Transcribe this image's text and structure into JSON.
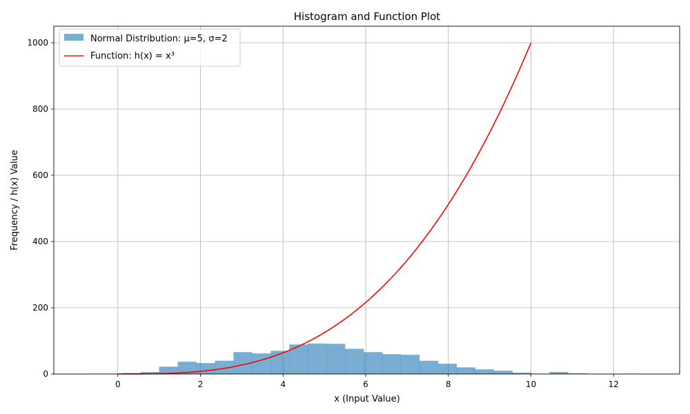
{
  "chart_data": {
    "type": "bar+line",
    "title": "Histogram and Function Plot",
    "xlabel": "x (Input Value)",
    "ylabel": "Frequency / h(x) Value",
    "xlim": [
      -1.55,
      13.6
    ],
    "ylim": [
      0,
      1050
    ],
    "x_ticks": [
      0,
      2,
      4,
      6,
      8,
      10,
      12
    ],
    "y_ticks": [
      0,
      200,
      400,
      600,
      800,
      1000
    ],
    "grid": true,
    "legend_position": "upper-left",
    "histogram": {
      "name": "Normal Distribution: μ=5, σ=2",
      "color": "#1f77b4",
      "opacity": 0.6,
      "bin_edges": [
        -0.8,
        -0.35,
        0.1,
        0.55,
        1.0,
        1.45,
        1.9,
        2.35,
        2.8,
        3.25,
        3.7,
        4.15,
        4.6,
        5.05,
        5.5,
        5.95,
        6.4,
        6.85,
        7.3,
        7.75,
        8.2,
        8.65,
        9.1,
        9.55,
        10.0,
        10.45,
        10.9,
        11.35,
        11.8,
        12.25,
        12.7,
        13.15
      ],
      "counts": [
        1,
        1,
        3,
        6,
        22,
        37,
        33,
        40,
        66,
        62,
        70,
        89,
        92,
        91,
        76,
        66,
        60,
        58,
        40,
        31,
        20,
        14,
        10,
        4,
        1,
        6,
        2,
        0,
        0,
        1,
        0
      ]
    },
    "function": {
      "name": "Function: h(x) = x³",
      "color": "#ff0000",
      "x_range": [
        0,
        10
      ],
      "exponent": 3
    }
  }
}
